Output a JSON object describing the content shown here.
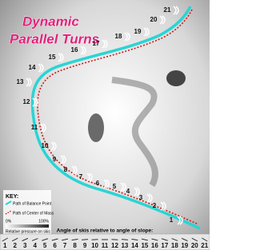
{
  "title_lines": [
    "Dynamic",
    "Parallel Turns"
  ],
  "path_labels": [
    1,
    2,
    3,
    4,
    5,
    6,
    7,
    8,
    9,
    10,
    11,
    12,
    13,
    14,
    15,
    16,
    17,
    18,
    19,
    20,
    21
  ],
  "key": {
    "heading": "KEY:",
    "items": [
      "Path of Balance Point",
      "Path of Center of Mass"
    ],
    "scale_min": "0%",
    "scale_max": "100%",
    "scale_caption": "Relative pressure on skis"
  },
  "bottom": {
    "caption": "Angle of skis relative to angle of slope:",
    "numbers": [
      1,
      2,
      3,
      4,
      5,
      6,
      7,
      8,
      9,
      10,
      11,
      12,
      13,
      14,
      15,
      16,
      17,
      18,
      19,
      20,
      21
    ]
  }
}
